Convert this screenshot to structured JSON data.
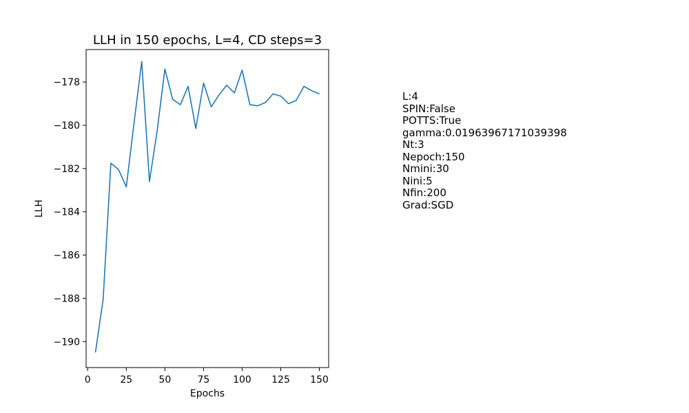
{
  "chart_data": {
    "type": "line",
    "title": "LLH in 150 epochs, L=4, CD steps=3",
    "xlabel": "Epochs",
    "ylabel": "LLH",
    "xlim": [
      -1,
      156
    ],
    "ylim": [
      -191.2,
      -176.5
    ],
    "xticks": [
      0,
      25,
      50,
      75,
      100,
      125,
      150
    ],
    "yticks": [
      -190,
      -188,
      -186,
      -184,
      -182,
      -180,
      -178
    ],
    "grid": false,
    "line_color": "#1f77b4",
    "series": [
      {
        "x": [
          5,
          10,
          15,
          20,
          25,
          30,
          35,
          40,
          45,
          50,
          55,
          60,
          65,
          70,
          75,
          80,
          85,
          90,
          95,
          100,
          105,
          110,
          115,
          120,
          125,
          130,
          135,
          140,
          145,
          150
        ],
        "y": [
          -190.5,
          -188.05,
          -181.75,
          -182.05,
          -182.85,
          -179.9,
          -177.05,
          -182.6,
          -180.25,
          -177.4,
          -178.8,
          -179.05,
          -178.2,
          -180.15,
          -178.05,
          -179.15,
          -178.6,
          -178.15,
          -178.5,
          -177.45,
          -179.05,
          -179.1,
          -178.95,
          -178.55,
          -178.65,
          -179.0,
          -178.85,
          -178.2,
          -178.4,
          -178.55
        ]
      }
    ]
  },
  "info": [
    "L:4",
    "SPIN:False",
    "POTTS:True",
    "gamma:0.01963967171039398",
    "Nt:3",
    "Nepoch:150",
    "Nmini:30",
    "Nini:5",
    "Nfin:200",
    "Grad:SGD"
  ]
}
